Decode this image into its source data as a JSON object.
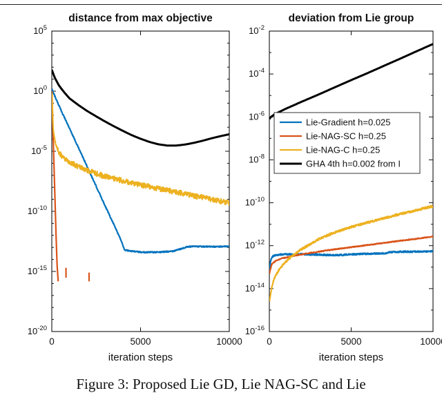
{
  "page": {
    "caption": "Figure 3: Proposed Lie GD, Lie NAG-SC and Lie"
  },
  "colors": {
    "blue": "#0072BD",
    "orange": "#D95319",
    "yellow": "#EDB120",
    "black": "#000000"
  },
  "chart_data": [
    {
      "type": "line",
      "title": "distance from max objective",
      "xlabel": "iteration steps",
      "xlim": [
        0,
        10000
      ],
      "xticks": [
        0,
        5000,
        10000
      ],
      "yscale": "log",
      "ylim_exp": [
        -20,
        5
      ],
      "ytick_exps": [
        5,
        0,
        -5,
        -10,
        -15,
        -20
      ],
      "legend": false,
      "series": [
        {
          "name": "Lie-Gradient h=0.025",
          "color": "#0072BD",
          "width": 2.2,
          "noise": 0.05,
          "x": [
            0,
            500,
            1000,
            1500,
            2000,
            2500,
            3000,
            3500,
            3900,
            4100,
            5000,
            6000,
            6900,
            7200,
            7600,
            8000,
            9000,
            10000
          ],
          "y": [
            1.5,
            0.03,
            0.0008,
            2e-05,
            5e-07,
            1.2e-08,
            3e-10,
            8e-12,
            4e-13,
            6e-14,
            4e-14,
            4e-14,
            5e-14,
            7e-14,
            1.1e-13,
            1.2e-13,
            1.15e-13,
            1.2e-13
          ]
        },
        {
          "name": "Lie-NAG-SC h=0.25",
          "color": "#D95319",
          "width": 2.2,
          "noise": 0,
          "x": [
            10,
            60,
            120,
            180,
            240,
            300,
            360
          ],
          "y": [
            1,
            0.001,
            1e-06,
            1e-09,
            1e-12,
            3e-15,
            1.5e-16
          ]
        },
        {
          "name": "Lie-NAG-C h=0.25",
          "color": "#EDB120",
          "width": 2,
          "noise": 0.22,
          "x": [
            0,
            80,
            200,
            400,
            700,
            1100,
            1600,
            2200,
            3000,
            4000,
            5000,
            6000,
            7000,
            8000,
            9000,
            10000
          ],
          "y": [
            1,
            0.001,
            5e-05,
            8e-06,
            2.5e-06,
            1e-06,
            4.5e-07,
            2e-07,
            8e-08,
            3.5e-08,
            1.6e-08,
            8e-09,
            4e-09,
            2e-09,
            1e-09,
            5e-10
          ]
        },
        {
          "name": "GHA 4th h=0.002 from I",
          "color": "#000000",
          "width": 3,
          "noise": 0,
          "x": [
            0,
            150,
            400,
            700,
            1000,
            1500,
            2000,
            2500,
            3000,
            3500,
            4000,
            4500,
            5000,
            5500,
            6000,
            6500,
            7000,
            7500,
            8000,
            8500,
            9000,
            9500,
            10000
          ],
          "y": [
            60,
            15,
            3,
            0.8,
            0.25,
            0.07,
            0.022,
            0.008,
            0.003,
            0.0012,
            0.0005,
            0.00022,
            0.00011,
            6e-05,
            3.8e-05,
            3e-05,
            3e-05,
            3.6e-05,
            5e-05,
            7.5e-05,
            0.00012,
            0.00018,
            0.00026
          ]
        }
      ],
      "spikes": [
        {
          "x": 800,
          "y0": 3e-16,
          "y1": 2e-15,
          "color": "#D95319",
          "width": 2.2
        },
        {
          "x": 2100,
          "y0": 1.5e-16,
          "y1": 8e-16,
          "color": "#D95319",
          "width": 2.2
        }
      ]
    },
    {
      "type": "line",
      "title": "deviation from Lie group",
      "xlabel": "iteration steps",
      "xlim": [
        0,
        10000
      ],
      "xticks": [
        0,
        5000,
        10000
      ],
      "yscale": "log",
      "ylim_exp": [
        -16,
        -2
      ],
      "ytick_exps": [
        -2,
        -4,
        -6,
        -8,
        -10,
        -12,
        -14,
        -16
      ],
      "legend": true,
      "series": [
        {
          "name": "Lie-Gradient h=0.025",
          "color": "#0072BD",
          "width": 2.2,
          "noise": 0.035,
          "x": [
            0,
            80,
            200,
            500,
            1000,
            2000,
            3000,
            4000,
            5000,
            6000,
            7000,
            7400,
            8000,
            9000,
            10000
          ],
          "y": [
            7e-14,
            2e-13,
            3.2e-13,
            3.8e-13,
            4e-13,
            4e-13,
            3.8e-13,
            3.6e-13,
            3.9e-13,
            4.2e-13,
            4.4e-13,
            5e-13,
            5.2e-13,
            5.3e-13,
            5.5e-13
          ]
        },
        {
          "name": "Lie-NAG-SC h=0.25",
          "color": "#D95319",
          "width": 2.2,
          "noise": 0.02,
          "x": [
            0,
            150,
            400,
            800,
            1500,
            2500,
            3500,
            5000,
            6500,
            8000,
            9000,
            10000
          ],
          "y": [
            5e-14,
            1.4e-13,
            2e-13,
            2.6e-13,
            3.4e-13,
            4.6e-13,
            6e-13,
            8.5e-13,
            1.2e-12,
            1.7e-12,
            2.1e-12,
            2.7e-12
          ]
        },
        {
          "name": "Lie-NAG-C h=0.25",
          "color": "#EDB120",
          "width": 2.2,
          "noise": 0.05,
          "x": [
            0,
            60,
            150,
            300,
            600,
            1000,
            1500,
            2000,
            3000,
            4000,
            5000,
            6000,
            7000,
            8000,
            9000,
            10000
          ],
          "y": [
            2.5e-15,
            5e-15,
            1.2e-14,
            3e-14,
            8e-14,
            1.8e-13,
            3.8e-13,
            7e-13,
            2e-12,
            4.2e-12,
            7.5e-12,
            1.2e-11,
            1.9e-11,
            3e-11,
            4.5e-11,
            7e-11
          ]
        },
        {
          "name": "GHA 4th h=0.002 from I",
          "color": "#000000",
          "width": 3,
          "noise": 0,
          "x": [
            0,
            100,
            300,
            600,
            1000,
            2000,
            3000,
            4000,
            5000,
            6000,
            7000,
            8000,
            9000,
            10000
          ],
          "y": [
            8e-07,
            1e-06,
            1.3e-06,
            1.7e-06,
            2.4e-06,
            5.2e-06,
            1.1e-05,
            2.4e-05,
            5.2e-05,
            0.00011,
            0.00024,
            0.00052,
            0.00115,
            0.0025
          ]
        }
      ],
      "spikes": []
    }
  ]
}
